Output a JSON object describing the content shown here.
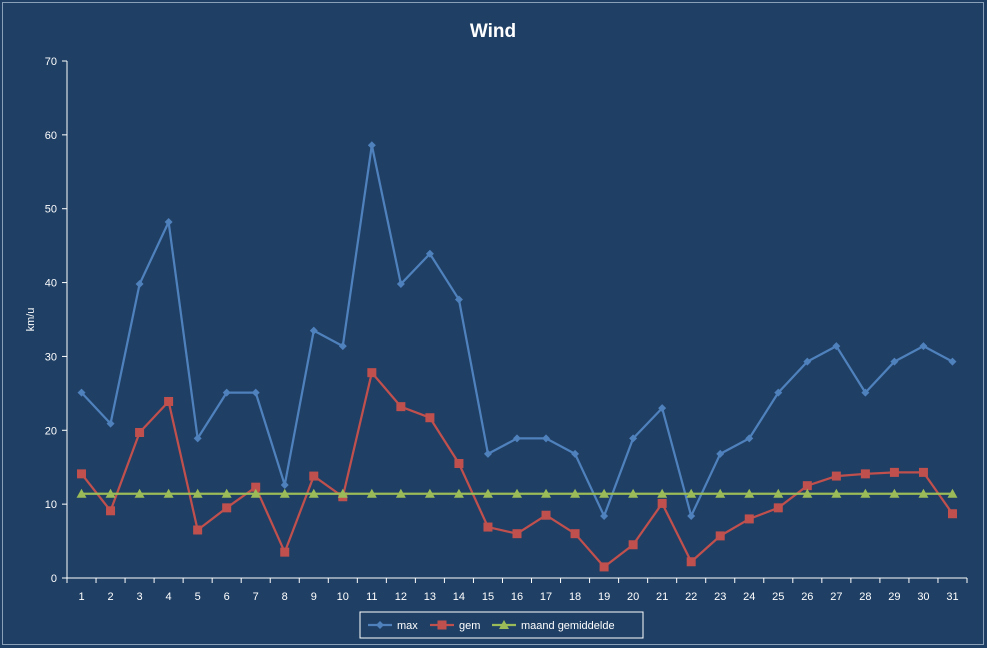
{
  "chart_data": {
    "type": "line",
    "title": "Wind",
    "xlabel": "",
    "ylabel": "km/u",
    "ylim": [
      0,
      70
    ],
    "yticks": [
      0,
      10,
      20,
      30,
      40,
      50,
      60,
      70
    ],
    "x": [
      1,
      2,
      3,
      4,
      5,
      6,
      7,
      8,
      9,
      10,
      11,
      12,
      13,
      14,
      15,
      16,
      17,
      18,
      19,
      20,
      21,
      22,
      23,
      24,
      25,
      26,
      27,
      28,
      29,
      30,
      31
    ],
    "grid": false,
    "legend_position": "bottom",
    "series": [
      {
        "name": "max",
        "color": "#4f81bd",
        "marker": "diamond",
        "values": [
          25.1,
          20.9,
          39.8,
          48.2,
          18.9,
          25.1,
          25.1,
          12.6,
          33.5,
          31.4,
          58.6,
          39.8,
          43.9,
          37.7,
          16.8,
          18.9,
          18.9,
          16.8,
          8.4,
          18.9,
          23.0,
          8.4,
          16.8,
          18.9,
          25.1,
          29.3,
          31.4,
          25.1,
          29.3,
          31.4,
          29.3
        ]
      },
      {
        "name": "gem",
        "color": "#c0504d",
        "marker": "square",
        "values": [
          14.1,
          9.1,
          19.7,
          23.9,
          6.5,
          9.5,
          12.3,
          3.5,
          13.8,
          11.0,
          27.8,
          23.2,
          21.7,
          15.5,
          6.9,
          6.0,
          8.5,
          6.0,
          1.5,
          4.5,
          10.1,
          2.2,
          5.7,
          8.0,
          9.5,
          12.5,
          13.8,
          14.1,
          14.3,
          14.3,
          8.7
        ]
      },
      {
        "name": "maand gemiddelde",
        "color": "#9bbb59",
        "marker": "triangle",
        "values": [
          11.4,
          11.4,
          11.4,
          11.4,
          11.4,
          11.4,
          11.4,
          11.4,
          11.4,
          11.4,
          11.4,
          11.4,
          11.4,
          11.4,
          11.4,
          11.4,
          11.4,
          11.4,
          11.4,
          11.4,
          11.4,
          11.4,
          11.4,
          11.4,
          11.4,
          11.4,
          11.4,
          11.4,
          11.4,
          11.4,
          11.4
        ]
      }
    ],
    "colors": {
      "background": "#1f3f64",
      "axis": "#ffffff"
    }
  }
}
